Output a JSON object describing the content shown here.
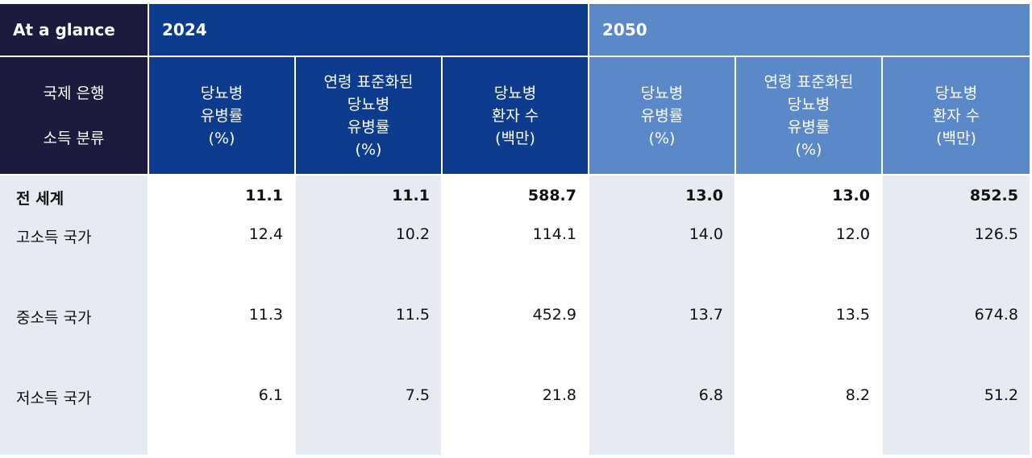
{
  "table": {
    "group_headers": [
      "At a glance",
      "2024",
      "2050"
    ],
    "column_headers": [
      [
        "국제 은행",
        "소득 분류"
      ],
      [
        "당뇨병",
        "유병률",
        "(%)"
      ],
      [
        "연령 표준화된",
        "당뇨병",
        "유병률",
        "(%)"
      ],
      [
        "당뇨병",
        "환자 수",
        "(백만)"
      ],
      [
        "당뇨병",
        "유병률",
        "(%)"
      ],
      [
        "연령 표준화된",
        "당뇨병",
        "유병률",
        "(%)"
      ],
      [
        "당뇨병",
        "환자 수",
        "(백만)"
      ]
    ],
    "rows": [
      [
        "전 세계",
        "11.1",
        "11.1",
        "588.7",
        "13.0",
        "13.0",
        "852.5"
      ],
      [
        "고소득 국가",
        "12.4",
        "10.2",
        "114.1",
        "14.0",
        "12.0",
        "126.5"
      ],
      [
        "중소득 국가",
        "11.3",
        "11.5",
        "452.9",
        "13.7",
        "13.5",
        "674.8"
      ],
      [
        "저소득 국가",
        "6.1",
        "7.5",
        "21.8",
        "6.8",
        "8.2",
        "51.2"
      ]
    ]
  }
}
